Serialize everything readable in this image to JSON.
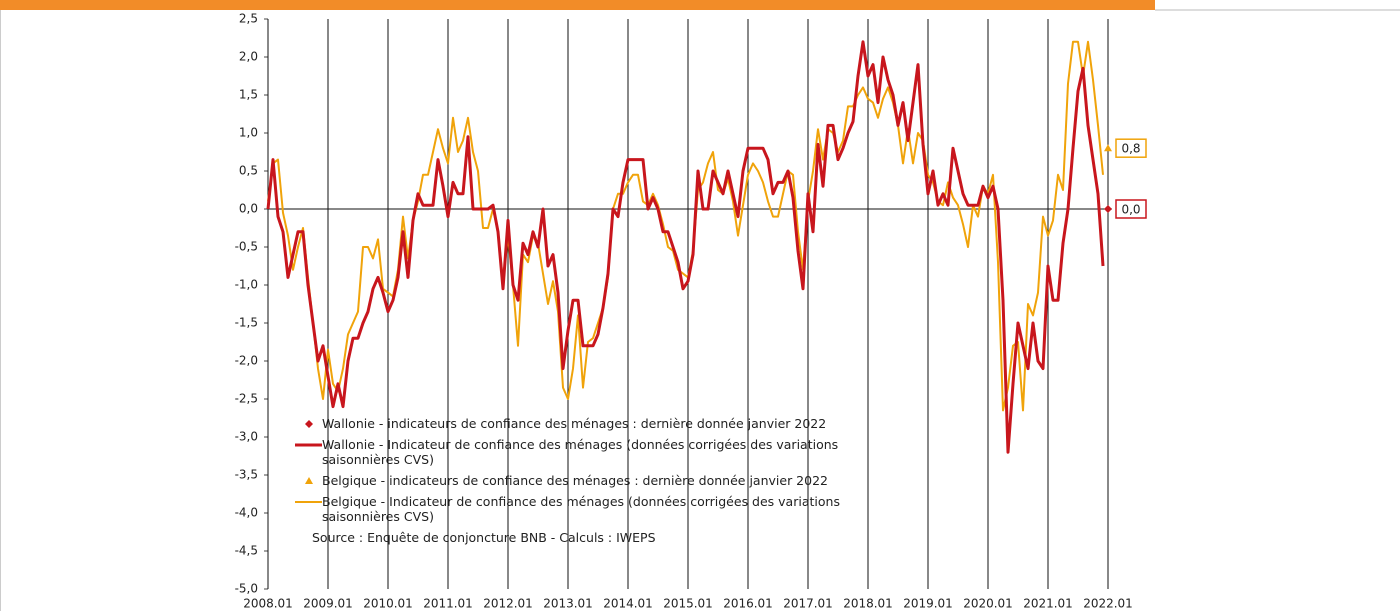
{
  "chart_data": {
    "type": "line",
    "categories": [
      "2008.01",
      null,
      null,
      null,
      null,
      null,
      null,
      null,
      null,
      null,
      null,
      null,
      "2009.01",
      null,
      null,
      null,
      null,
      null,
      null,
      null,
      null,
      null,
      null,
      null,
      "2010.01",
      null,
      null,
      null,
      null,
      null,
      null,
      null,
      null,
      null,
      null,
      null,
      "2011.01",
      null,
      null,
      null,
      null,
      null,
      null,
      null,
      null,
      null,
      null,
      null,
      "2012.01",
      null,
      null,
      null,
      null,
      null,
      null,
      null,
      null,
      null,
      null,
      null,
      "2013.01",
      null,
      null,
      null,
      null,
      null,
      null,
      null,
      null,
      null,
      null,
      null,
      "2014.01",
      null,
      null,
      null,
      null,
      null,
      null,
      null,
      null,
      null,
      null,
      null,
      "2015.01",
      null,
      null,
      null,
      null,
      null,
      null,
      null,
      null,
      null,
      null,
      null,
      "2016.01",
      null,
      null,
      null,
      null,
      null,
      null,
      null,
      null,
      null,
      null,
      null,
      "2017.01",
      null,
      null,
      null,
      null,
      null,
      null,
      null,
      null,
      null,
      null,
      null,
      "2018.01",
      null,
      null,
      null,
      null,
      null,
      null,
      null,
      null,
      null,
      null,
      null,
      "2019.01",
      null,
      null,
      null,
      null,
      null,
      null,
      null,
      null,
      null,
      null,
      null,
      "2020.01",
      null,
      null,
      null,
      null,
      null,
      null,
      null,
      null,
      null,
      null,
      null,
      "2021.01",
      null,
      null,
      null,
      null,
      null,
      null,
      null,
      null,
      null,
      null,
      null,
      "2022.01"
    ],
    "series": [
      {
        "name": "Wallonie - Indicateur de confiance des ménages (données corrigées des variations saisonnières CVS)",
        "color": "#c8161d",
        "values": [
          0.0,
          0.65,
          -0.1,
          -0.3,
          -0.9,
          -0.6,
          -0.3,
          -0.3,
          -1.0,
          -1.5,
          -2.0,
          -1.8,
          -2.2,
          -2.6,
          -2.3,
          -2.6,
          -2.0,
          -1.7,
          -1.7,
          -1.5,
          -1.35,
          -1.05,
          -0.9,
          -1.1,
          -1.35,
          -1.2,
          -0.9,
          -0.3,
          -0.9,
          -0.15,
          0.2,
          0.05,
          0.05,
          0.05,
          0.65,
          0.3,
          -0.1,
          0.35,
          0.2,
          0.2,
          0.95,
          0.0,
          0.0,
          0.0,
          0.0,
          0.05,
          -0.3,
          -1.05,
          -0.15,
          -1.0,
          -1.2,
          -0.45,
          -0.6,
          -0.3,
          -0.5,
          0.0,
          -0.75,
          -0.6,
          -1.1,
          -2.1,
          -1.6,
          -1.2,
          -1.2,
          -1.8,
          -1.8,
          -1.8,
          -1.65,
          -1.3,
          -0.85,
          0.0,
          -0.1,
          0.35,
          0.65,
          0.65,
          0.65,
          0.65,
          0.0,
          0.15,
          0.0,
          -0.3,
          -0.3,
          -0.5,
          -0.7,
          -1.05,
          -0.95,
          -0.6,
          0.5,
          0.0,
          0.0,
          0.5,
          0.35,
          0.2,
          0.5,
          0.2,
          -0.1,
          0.5,
          0.8,
          0.8,
          0.8,
          0.8,
          0.65,
          0.2,
          0.35,
          0.35,
          0.5,
          0.15,
          -0.55,
          -1.05,
          0.2,
          -0.3,
          0.85,
          0.3,
          1.1,
          1.1,
          0.65,
          0.8,
          1.0,
          1.15,
          1.75,
          2.2,
          1.75,
          1.9,
          1.4,
          2.0,
          1.7,
          1.5,
          1.1,
          1.4,
          0.9,
          1.4,
          1.9,
          0.85,
          0.2,
          0.5,
          0.05,
          0.2,
          0.05,
          0.8,
          0.5,
          0.2,
          0.05,
          0.05,
          0.05,
          0.3,
          0.15,
          0.3,
          0.0,
          -1.2,
          -3.2,
          -2.3,
          -1.5,
          -1.8,
          -2.1,
          -1.5,
          -2.0,
          -2.1,
          -0.75,
          -1.2,
          -1.2,
          -0.45,
          0.0,
          0.8,
          1.55,
          1.85,
          1.1,
          0.65,
          0.2,
          -0.75,
          null
        ]
      },
      {
        "name": "Belgique - Indicateur de confiance des ménages (données corrigées des variations saisonnières CVS)",
        "color": "#f0a30a",
        "values": [
          0.1,
          0.6,
          0.65,
          -0.05,
          -0.35,
          -0.8,
          -0.5,
          -0.25,
          -0.9,
          -1.5,
          -2.1,
          -2.5,
          -1.85,
          -2.3,
          -2.4,
          -2.1,
          -1.65,
          -1.5,
          -1.35,
          -0.5,
          -0.5,
          -0.65,
          -0.4,
          -1.05,
          -1.1,
          -1.15,
          -0.8,
          -0.1,
          -0.65,
          -0.15,
          0.1,
          0.45,
          0.45,
          0.75,
          1.05,
          0.8,
          0.6,
          1.2,
          0.75,
          0.9,
          1.2,
          0.75,
          0.5,
          -0.25,
          -0.25,
          0.0,
          -0.3,
          -0.95,
          -0.35,
          -1.0,
          -1.8,
          -0.6,
          -0.7,
          -0.35,
          -0.45,
          -0.85,
          -1.25,
          -0.95,
          -1.35,
          -2.35,
          -2.5,
          -2.1,
          -1.4,
          -2.35,
          -1.75,
          -1.7,
          -1.5,
          -1.3,
          -0.9,
          0.0,
          0.2,
          0.2,
          0.35,
          0.45,
          0.45,
          0.1,
          0.05,
          0.2,
          0.05,
          -0.2,
          -0.5,
          -0.55,
          -0.8,
          -0.85,
          -0.9,
          -0.55,
          0.25,
          0.35,
          0.6,
          0.75,
          0.25,
          0.2,
          0.4,
          0.1,
          -0.35,
          0.05,
          0.45,
          0.6,
          0.5,
          0.35,
          0.1,
          -0.1,
          -0.1,
          0.2,
          0.5,
          0.45,
          -0.3,
          -0.8,
          0.1,
          0.5,
          1.05,
          0.65,
          1.05,
          1.0,
          0.75,
          0.9,
          1.35,
          1.35,
          1.5,
          1.6,
          1.45,
          1.4,
          1.2,
          1.45,
          1.6,
          1.4,
          1.1,
          0.6,
          1.05,
          0.6,
          1.0,
          0.9,
          0.45,
          0.35,
          0.1,
          0.05,
          0.35,
          0.15,
          0.05,
          -0.2,
          -0.5,
          0.05,
          -0.1,
          0.3,
          0.2,
          0.45,
          -0.7,
          -2.65,
          -2.35,
          -1.8,
          -1.75,
          -2.65,
          -1.25,
          -1.4,
          -1.1,
          -0.1,
          -0.35,
          -0.15,
          0.45,
          0.25,
          1.65,
          2.2,
          2.2,
          1.75,
          2.2,
          1.7,
          1.1,
          0.45,
          null
        ]
      }
    ],
    "markers": [
      {
        "name": "Wallonie - indicateurs de confiance des ménages : dernière donnée janvier 2022",
        "color": "#c8161d",
        "shape": "diamond",
        "category": "2022.01",
        "value": 0.0,
        "value_label": "0,0"
      },
      {
        "name": "Belgique - indicateurs de confiance des ménages : dernière donnée janvier 2022",
        "color": "#f0a30a",
        "shape": "triangle",
        "category": "2022.01",
        "value": 0.8,
        "value_label": "0,8"
      }
    ],
    "source": "Source : Enquête de conjoncture BNB - Calculs : IWEPS",
    "ylim": [
      -5.0,
      2.5
    ],
    "yticks": [
      {
        "value": -5.0,
        "label": "-5,0"
      },
      {
        "value": -4.5,
        "label": "-4,5"
      },
      {
        "value": -4.0,
        "label": "-4,0"
      },
      {
        "value": -3.5,
        "label": "-3,5"
      },
      {
        "value": -3.0,
        "label": "-3,0"
      },
      {
        "value": -2.5,
        "label": "-2,5"
      },
      {
        "value": -2.0,
        "label": "-2,0"
      },
      {
        "value": -1.5,
        "label": "-1,5"
      },
      {
        "value": -1.0,
        "label": "-1,0"
      },
      {
        "value": -0.5,
        "label": "-0,5"
      },
      {
        "value": 0.0,
        "label": "0,0"
      },
      {
        "value": 0.5,
        "label": "0,5"
      },
      {
        "value": 1.0,
        "label": "1,0"
      },
      {
        "value": 1.5,
        "label": "1,5"
      },
      {
        "value": 2.0,
        "label": "2,0"
      },
      {
        "value": 2.5,
        "label": "2,5"
      }
    ],
    "grid": true
  }
}
